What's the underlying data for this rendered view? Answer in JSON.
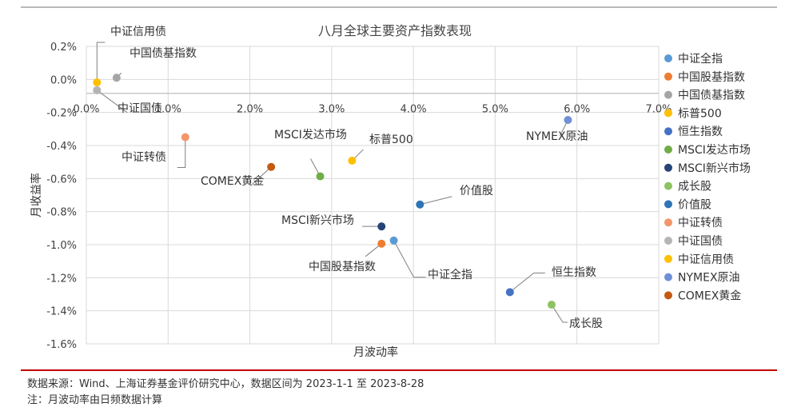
{
  "chart_data": {
    "type": "scatter",
    "title": "八月全球主要资产指数表现",
    "xlabel": "月波动率",
    "ylabel": "月收益率",
    "xlim": [
      0,
      0.07
    ],
    "ylim": [
      -0.016,
      0.003
    ],
    "x_ticks": [
      "0.0%",
      "1.0%",
      "2.0%",
      "3.0%",
      "4.0%",
      "5.0%",
      "6.0%",
      "7.0%"
    ],
    "y_ticks": [
      "0.2%",
      "0.0%",
      "-0.2%",
      "-0.4%",
      "-0.6%",
      "-0.8%",
      "-1.0%",
      "-1.2%",
      "-1.4%",
      "-1.6%"
    ],
    "grid": true,
    "legend_position": "right",
    "series": [
      {
        "name": "中证全指",
        "color": "#5b9bd5",
        "x": 0.0376,
        "y": -0.0094
      },
      {
        "name": "中国股基指数",
        "color": "#ed7d31",
        "x": 0.0361,
        "y": -0.0096
      },
      {
        "name": "中国债基指数",
        "color": "#a5a5a5",
        "x": 0.0037,
        "y": 0.001
      },
      {
        "name": "标普500",
        "color": "#ffc000",
        "x": 0.0325,
        "y": -0.0043
      },
      {
        "name": "恒生指数",
        "color": "#4472c4",
        "x": 0.0518,
        "y": -0.0127
      },
      {
        "name": "MSCI发达市场",
        "color": "#70ad47",
        "x": 0.0286,
        "y": -0.0053
      },
      {
        "name": "MSCI新兴市场",
        "color": "#264478",
        "x": 0.0361,
        "y": -0.0085
      },
      {
        "name": "成长股",
        "color": "#8dc363",
        "x": 0.0569,
        "y": -0.0135
      },
      {
        "name": "价值股",
        "color": "#2e75b6",
        "x": 0.0408,
        "y": -0.0071
      },
      {
        "name": "中证转债",
        "color": "#f4956a",
        "x": 0.0121,
        "y": -0.0028
      },
      {
        "name": "中证国债",
        "color": "#b4b4b4",
        "x": 0.0013,
        "y": 0.0002
      },
      {
        "name": "中证信用债",
        "color": "#ffc000",
        "x": 0.0013,
        "y": 0.0007
      },
      {
        "name": "NYMEX原油",
        "color": "#6f8fd6",
        "x": 0.0589,
        "y": -0.0017
      },
      {
        "name": "COMEX黄金",
        "color": "#c55a11",
        "x": 0.0226,
        "y": -0.0047
      }
    ]
  },
  "footer": {
    "note1": "数据来源：Wind、上海证券基金评价研究中心，数据区间为 2023-1-1 至 2023-8-28",
    "note2": "注：月波动率由日频数据计算"
  }
}
